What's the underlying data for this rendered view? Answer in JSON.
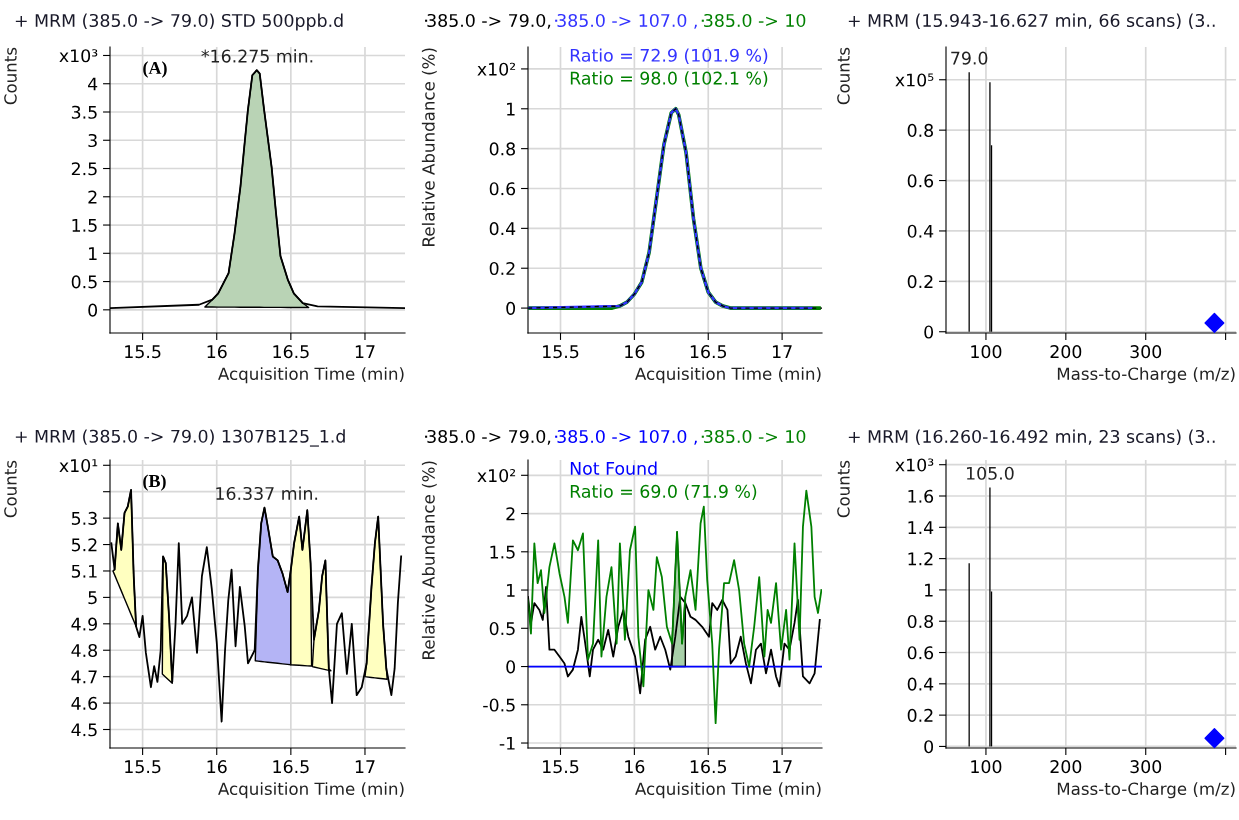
{
  "chart_data": [
    {
      "type": "line",
      "title": "+ MRM (385.0 -> 79.0) STD 500ppb.d",
      "xlabel": "Acquisition Time (min)",
      "ylabel": "Counts",
      "xlim": [
        15.28,
        17.27
      ],
      "ylim": [
        -0.41,
        4.65
      ],
      "xticks": [
        15.5,
        16,
        16.5,
        17
      ],
      "yticks": [
        0,
        0.5,
        1,
        1.5,
        2,
        2.5,
        3,
        3.5,
        4,
        {
          "value": 4.5,
          "label": "x10³"
        }
      ],
      "grid": true,
      "annotations": [
        "(A)",
        {
          "text": "*16.275 min.",
          "x": 16.275,
          "y": 4.24
        }
      ],
      "series": [
        {
          "type": "line",
          "color": "#000000",
          "x": [
            15.28,
            15.88,
            15.97,
            16.01,
            16.08,
            16.12,
            16.16,
            16.19,
            16.21,
            16.24,
            16.27,
            16.29,
            16.32,
            16.37,
            16.4,
            16.43,
            16.48,
            16.52,
            16.58,
            16.68,
            17.27
          ],
          "values": [
            0.03,
            0.09,
            0.18,
            0.29,
            0.65,
            1.35,
            2.18,
            3.0,
            3.53,
            4.15,
            4.24,
            4.18,
            3.53,
            2.53,
            1.71,
            0.95,
            0.53,
            0.29,
            0.12,
            0.06,
            0.03
          ]
        },
        {
          "type": "area",
          "color": "#b9d3b5",
          "x": [
            15.92,
            15.97,
            16.01,
            16.08,
            16.12,
            16.16,
            16.19,
            16.21,
            16.24,
            16.27,
            16.29,
            16.32,
            16.37,
            16.4,
            16.43,
            16.48,
            16.52,
            16.58,
            16.62
          ],
          "values": [
            0.05,
            0.18,
            0.29,
            0.65,
            1.35,
            2.18,
            3.0,
            3.53,
            4.15,
            4.24,
            4.18,
            3.53,
            2.53,
            1.71,
            0.95,
            0.53,
            0.29,
            0.12,
            0.04
          ]
        }
      ]
    },
    {
      "type": "line",
      "xlabel": "Acquisition Time (min)",
      "ylabel": "Relative Abundance (%)",
      "xlim": [
        15.28,
        17.27
      ],
      "ylim": [
        -0.125,
        1.31
      ],
      "xticks": [
        15.5,
        16,
        16.5,
        17
      ],
      "yticks": [
        0,
        0.2,
        0.4,
        0.6,
        0.8,
        1,
        {
          "value": 1.2,
          "label": "x10²"
        }
      ],
      "grid": true,
      "legend": "top",
      "annotations": [
        "Ratio = 72.9 (101.9 %)",
        "Ratio = 98.0 (102.1 %)"
      ],
      "series": [
        {
          "name": "385.0 -> 79.0,",
          "color": "#000000",
          "line_style": "dashed",
          "x": [
            15.28,
            15.9,
            15.95,
            16.0,
            16.05,
            16.1,
            16.15,
            16.2,
            16.25,
            16.28,
            16.3,
            16.35,
            16.4,
            16.45,
            16.5,
            16.55,
            16.6,
            16.65,
            17.27
          ],
          "values": [
            0,
            0.01,
            0.03,
            0.07,
            0.13,
            0.28,
            0.55,
            0.82,
            0.98,
            1.0,
            0.97,
            0.78,
            0.45,
            0.2,
            0.08,
            0.03,
            0.01,
            0,
            0
          ]
        },
        {
          "name": "385.0 -> 107.0 ,",
          "color": "#3333ff",
          "x": [
            15.28,
            15.9,
            15.95,
            16.0,
            16.05,
            16.1,
            16.15,
            16.2,
            16.25,
            16.28,
            16.3,
            16.35,
            16.4,
            16.45,
            16.5,
            16.55,
            16.6,
            16.65,
            17.2
          ],
          "values": [
            0,
            0.01,
            0.03,
            0.07,
            0.13,
            0.28,
            0.55,
            0.82,
            0.98,
            1.0,
            0.97,
            0.78,
            0.45,
            0.2,
            0.08,
            0.03,
            0.01,
            0,
            0
          ]
        },
        {
          "name": "385.0 -> 10",
          "color": "#008000",
          "x": [
            15.28,
            15.85,
            15.9,
            15.95,
            16.0,
            16.05,
            16.1,
            16.15,
            16.2,
            16.25,
            16.28,
            16.3,
            16.35,
            16.4,
            16.45,
            16.5,
            16.55,
            16.6,
            16.65,
            17.25
          ],
          "values": [
            0,
            0,
            0.01,
            0.03,
            0.07,
            0.13,
            0.28,
            0.55,
            0.82,
            0.98,
            1.0,
            0.97,
            0.78,
            0.45,
            0.2,
            0.08,
            0.03,
            0.01,
            0,
            0
          ]
        }
      ]
    },
    {
      "type": "bar",
      "title": "+ MRM (15.943-16.627 min, 66 scans) (3..",
      "xlabel": "Mass-to-Charge (m/z)",
      "ylabel": "Counts",
      "xlim": [
        50,
        413
      ],
      "ylim": [
        -0.005,
        1.13
      ],
      "xticks": [
        100,
        200,
        300,
        {
          "value": 400,
          "label": null
        }
      ],
      "yticks": [
        0,
        0.2,
        0.4,
        0.6,
        0.8,
        {
          "value": 1.0,
          "label": "x10⁵"
        }
      ],
      "grid": true,
      "annotations": [
        {
          "text": "79.0",
          "x": 79,
          "y": 1.03
        }
      ],
      "series": [
        {
          "type": "bar",
          "color": "#000000",
          "x": [
            79,
            105,
            107
          ],
          "values": [
            1.03,
            0.99,
            0.74
          ]
        },
        {
          "type": "scatter",
          "color": "#0000ff",
          "marker": "diamond",
          "x": [
            386
          ],
          "values": [
            0.035
          ]
        }
      ]
    },
    {
      "type": "line",
      "title": "+ MRM (385.0 -> 79.0) 1307B125_1.d",
      "xlabel": "Acquisition Time (min)",
      "ylabel": "Counts",
      "xlim": [
        15.28,
        17.27
      ],
      "ylim": [
        4.43,
        5.52
      ],
      "xticks": [
        15.5,
        16,
        16.5,
        17
      ],
      "yticks": [
        4.5,
        4.6,
        4.7,
        4.8,
        4.9,
        5,
        5.1,
        5.2,
        5.3,
        {
          "value": 5.4,
          "label": null
        },
        {
          "value": 5.5,
          "label": "x10¹"
        }
      ],
      "grid": true,
      "annotations": [
        "(B)",
        {
          "text": "16.337 min.",
          "x": 16.337,
          "y": 5.34
        }
      ],
      "series": [
        {
          "type": "area",
          "color": "#ffffc0",
          "x": [
            15.3,
            15.311,
            15.333,
            15.356,
            15.378,
            15.4,
            15.422,
            15.44,
            15.456
          ],
          "values": [
            5.1,
            5.105,
            5.28,
            5.18,
            5.32,
            5.344,
            5.407,
            5.08,
            4.89
          ]
        },
        {
          "type": "area",
          "color": "#ffffc0",
          "x": [
            15.633,
            15.638,
            15.656,
            15.678,
            15.7
          ],
          "values": [
            4.71,
            5.155,
            5.13,
            4.93,
            4.675
          ]
        },
        {
          "type": "area",
          "color": "#b4b4f5",
          "x": [
            16.26,
            16.278,
            16.3,
            16.322,
            16.344,
            16.378,
            16.411,
            16.444,
            16.478,
            16.5,
            16.5
          ],
          "values": [
            4.76,
            5.105,
            5.28,
            5.34,
            5.27,
            5.155,
            5.14,
            5.09,
            5.02,
            5.105,
            4.745
          ]
        },
        {
          "type": "area",
          "color": "#ffffc0",
          "x": [
            16.5,
            16.5,
            16.522,
            16.556,
            16.578,
            16.611,
            16.633,
            16.64
          ],
          "values": [
            4.745,
            5.105,
            5.205,
            5.306,
            5.18,
            5.33,
            5.13,
            4.74
          ]
        },
        {
          "type": "area",
          "color": "#ffffc0",
          "x": [
            16.645,
            16.656,
            16.689,
            16.711,
            16.733,
            16.756,
            16.77
          ],
          "values": [
            4.738,
            4.84,
            4.95,
            5.08,
            5.14,
            4.73,
            4.722
          ]
        },
        {
          "type": "area",
          "color": "#ffffc0",
          "x": [
            17.0,
            17.011,
            17.044,
            17.067,
            17.089,
            17.122,
            17.15
          ],
          "values": [
            4.7,
            4.75,
            5.04,
            5.205,
            5.306,
            4.9,
            4.69
          ]
        },
        {
          "type": "line",
          "color": "#000000",
          "x": [
            15.289,
            15.311,
            15.333,
            15.356,
            15.378,
            15.4,
            15.422,
            15.44,
            15.456,
            15.478,
            15.5,
            15.522,
            15.556,
            15.578,
            15.6,
            15.622,
            15.638,
            15.656,
            15.678,
            15.7,
            15.722,
            15.744,
            15.767,
            15.8,
            15.833,
            15.867,
            15.9,
            15.933,
            15.967,
            16.0,
            16.033,
            16.056,
            16.078,
            16.1,
            16.127,
            16.156,
            16.189,
            16.211,
            16.256,
            16.278,
            16.3,
            16.322,
            16.344,
            16.378,
            16.411,
            16.444,
            16.478,
            16.5,
            16.522,
            16.556,
            16.578,
            16.611,
            16.633,
            16.656,
            16.689,
            16.711,
            16.733,
            16.756,
            16.778,
            16.811,
            16.844,
            16.878,
            16.911,
            16.944,
            16.978,
            17.011,
            17.044,
            17.067,
            17.089,
            17.122,
            17.144,
            17.178,
            17.2,
            17.222,
            17.244
          ],
          "values": [
            5.205,
            5.105,
            5.28,
            5.18,
            5.32,
            5.344,
            5.407,
            5.08,
            4.89,
            4.85,
            4.93,
            4.79,
            4.66,
            4.74,
            4.68,
            4.8,
            5.155,
            5.13,
            4.93,
            4.68,
            4.9,
            5.205,
            4.9,
            4.93,
            5.0,
            4.79,
            5.08,
            5.19,
            5.03,
            4.83,
            4.53,
            4.8,
            4.99,
            5.105,
            4.815,
            5.04,
            4.89,
            4.75,
            4.8,
            5.105,
            5.28,
            5.34,
            5.27,
            5.155,
            5.14,
            5.09,
            5.02,
            5.105,
            5.205,
            5.306,
            5.18,
            5.33,
            5.13,
            4.84,
            4.95,
            5.08,
            5.14,
            4.73,
            4.6,
            4.9,
            4.94,
            4.71,
            4.9,
            4.63,
            4.66,
            4.75,
            5.04,
            5.205,
            5.306,
            4.9,
            4.73,
            4.63,
            4.73,
            4.98,
            5.155
          ]
        }
      ]
    },
    {
      "type": "line",
      "xlabel": "Acquisition Time (min)",
      "ylabel": "Relative Abundance (%)",
      "xlim": [
        15.28,
        17.27
      ],
      "ylim": [
        -1.065,
        2.7
      ],
      "xticks": [
        15.5,
        16,
        16.5,
        17
      ],
      "yticks": [
        -1,
        -0.5,
        0,
        0.5,
        1,
        1.5,
        2,
        {
          "value": 2.5,
          "label": "x10²"
        }
      ],
      "grid": true,
      "legend": "top",
      "annotations": [
        "Not Found",
        "Ratio = 69.0 (71.9 %)"
      ],
      "series": [
        {
          "name": "385.0 -> 79.0,",
          "color": "#000000",
          "x": [
            15.28,
            15.3,
            15.323,
            15.357,
            15.38,
            15.402,
            15.425,
            15.459,
            15.493,
            15.527,
            15.55,
            15.584,
            15.618,
            15.641,
            15.664,
            15.698,
            15.72,
            15.755,
            15.789,
            15.823,
            15.857,
            15.891,
            15.925,
            15.959,
            16.005,
            16.039,
            16.073,
            16.107,
            16.141,
            16.175,
            16.209,
            16.243,
            16.277,
            16.311,
            16.345,
            16.38,
            16.414,
            16.459,
            16.505,
            16.527,
            16.561,
            16.595,
            16.63,
            16.652,
            16.686,
            16.72,
            16.755,
            16.789,
            16.823,
            16.857,
            16.891,
            16.925,
            16.959,
            16.982,
            17.016,
            17.05,
            17.084,
            17.107,
            17.141,
            17.186,
            17.22,
            17.255
          ],
          "values": [
            0.91,
            0.57,
            0.83,
            0.74,
            0.61,
            1.04,
            0.22,
            0.22,
            0.13,
            0.04,
            -0.13,
            -0.04,
            0.22,
            0.65,
            0.35,
            -0.13,
            0.22,
            0.35,
            0.22,
            0.48,
            0.13,
            0.52,
            0.74,
            0.39,
            0.13,
            -0.35,
            0.35,
            0.52,
            0.22,
            0.39,
            0.22,
            -0.04,
            0.39,
            0.91,
            0.83,
            0.65,
            0.61,
            0.52,
            0.39,
            0.83,
            0.74,
            0.87,
            0.74,
            0.04,
            0.13,
            0.39,
            0.04,
            -0.22,
            0.22,
            0.3,
            -0.09,
            0.22,
            -0.13,
            -0.26,
            0.3,
            0.22,
            0.57,
            0.87,
            -0.13,
            -0.22,
            -0.09,
            0.61
          ]
        },
        {
          "name": "385.0 -> 107.0 ,",
          "color": "#0000ff",
          "x": [
            15.28,
            17.27
          ],
          "values": [
            0,
            0
          ]
        },
        {
          "name": "385.0 -> 10",
          "color": "#008000",
          "x": [
            15.28,
            15.3,
            15.323,
            15.345,
            15.368,
            15.391,
            15.425,
            15.459,
            15.493,
            15.527,
            15.55,
            15.584,
            15.618,
            15.652,
            15.686,
            15.72,
            15.755,
            15.777,
            15.811,
            15.845,
            15.88,
            15.902,
            15.936,
            15.97,
            16.005,
            16.027,
            16.061,
            16.095,
            16.129,
            16.152,
            16.186,
            16.22,
            16.255,
            16.289,
            16.323,
            16.345,
            16.38,
            16.414,
            16.448,
            16.47,
            16.493,
            16.527,
            16.55,
            16.573,
            16.607,
            16.641,
            16.675,
            16.709,
            16.743,
            16.777,
            16.811,
            16.845,
            16.88,
            16.902,
            16.925,
            16.959,
            16.993,
            17.027,
            17.05,
            17.084,
            17.118,
            17.141,
            17.164,
            17.198,
            17.22,
            17.243,
            17.266
          ],
          "values": [
            0.87,
            0.43,
            1.61,
            1.09,
            1.26,
            0.7,
            1.3,
            1.61,
            1.22,
            0.91,
            0.57,
            1.65,
            1.52,
            1.74,
            0.09,
            0.3,
            1.65,
            0.13,
            0.91,
            1.3,
            0.3,
            1.61,
            0.35,
            1.52,
            1.83,
            0.39,
            -0.26,
            1.0,
            0.74,
            1.43,
            1.17,
            0.52,
            0.3,
            1.76,
            0.3,
            0.91,
            1.26,
            0.74,
            1.87,
            2.09,
            1.13,
            0.3,
            -0.74,
            0.22,
            1.09,
            1.09,
            1.39,
            1.0,
            0.3,
            0.0,
            0.52,
            1.17,
            0.13,
            0.74,
            0.57,
            1.09,
            0.22,
            0.74,
            0.09,
            1.61,
            0.35,
            1.83,
            2.3,
            1.83,
            0.91,
            0.7,
            1.0
          ]
        },
        {
          "type": "area",
          "color": "#a8d0a8",
          "x": [
            16.255,
            16.255,
            16.289,
            16.323,
            16.345,
            16.345
          ],
          "values": [
            0,
            0.3,
            1.76,
            0.3,
            0.91,
            0
          ]
        }
      ]
    },
    {
      "type": "bar",
      "title": "+ MRM (16.260-16.492 min, 23 scans) (3..",
      "xlabel": "Mass-to-Charge (m/z)",
      "ylabel": "Counts",
      "xlim": [
        50,
        413
      ],
      "ylim": [
        -0.01,
        1.83
      ],
      "xticks": [
        100,
        200,
        300,
        {
          "value": 400,
          "label": null
        }
      ],
      "yticks": [
        0,
        0.2,
        0.4,
        0.6,
        0.8,
        1,
        1.2,
        1.4,
        1.6,
        {
          "value": 1.8,
          "label": "x10³"
        }
      ],
      "grid": true,
      "annotations": [
        {
          "text": "105.0",
          "x": 105,
          "y": 1.655
        }
      ],
      "series": [
        {
          "type": "bar",
          "color": "#000000",
          "x": [
            79,
            105,
            107
          ],
          "values": [
            1.17,
            1.655,
            0.99
          ]
        },
        {
          "type": "scatter",
          "color": "#0000ff",
          "marker": "diamond",
          "x": [
            386
          ],
          "values": [
            0.053
          ]
        }
      ]
    }
  ]
}
